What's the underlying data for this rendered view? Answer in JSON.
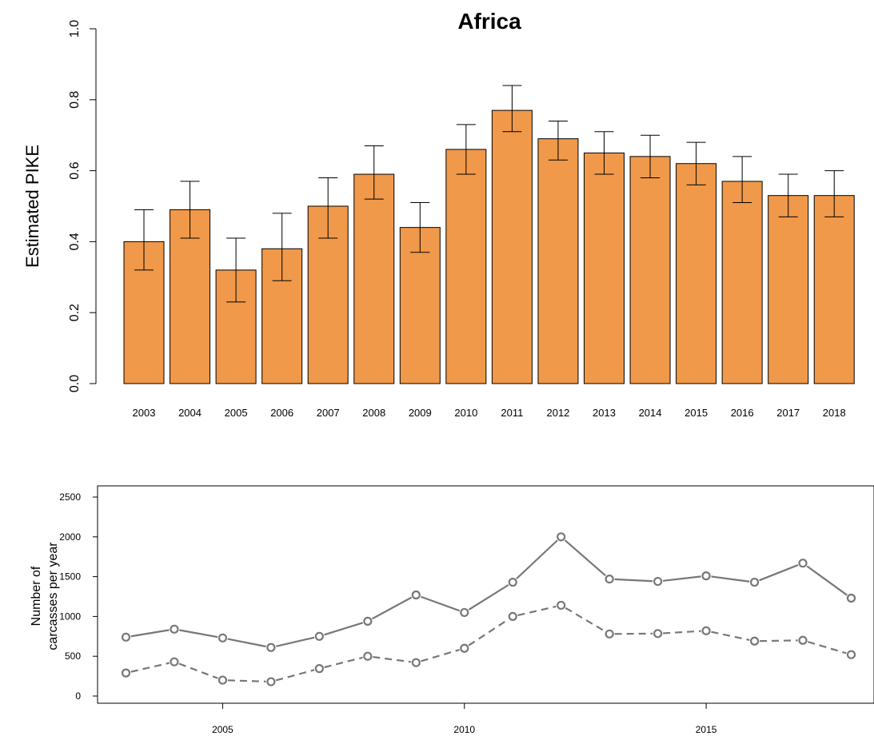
{
  "colors": {
    "bar_fill": "#F0994A",
    "bar_stroke": "#000000",
    "line": "#777777",
    "axis": "#000000"
  },
  "chart_data": [
    {
      "type": "bar",
      "title": "Africa",
      "ylabel": "Estimated PIKE",
      "xlabel": "",
      "ylim": [
        0,
        1
      ],
      "yticks": [
        "0.0",
        "0.2",
        "0.4",
        "0.6",
        "0.8",
        "1.0"
      ],
      "categories": [
        "2003",
        "2004",
        "2005",
        "2006",
        "2007",
        "2008",
        "2009",
        "2010",
        "2011",
        "2012",
        "2013",
        "2014",
        "2015",
        "2016",
        "2017",
        "2018"
      ],
      "values": [
        0.4,
        0.49,
        0.32,
        0.38,
        0.5,
        0.59,
        0.44,
        0.66,
        0.77,
        0.69,
        0.65,
        0.64,
        0.62,
        0.57,
        0.53,
        0.53
      ],
      "error_low": [
        0.32,
        0.41,
        0.23,
        0.29,
        0.41,
        0.52,
        0.37,
        0.59,
        0.71,
        0.63,
        0.59,
        0.58,
        0.56,
        0.51,
        0.47,
        0.47
      ],
      "error_high": [
        0.49,
        0.57,
        0.41,
        0.48,
        0.58,
        0.67,
        0.51,
        0.73,
        0.84,
        0.74,
        0.71,
        0.7,
        0.68,
        0.64,
        0.59,
        0.6
      ],
      "grid": false
    },
    {
      "type": "line",
      "title": "",
      "ylabel": [
        "Number of",
        "carcasses per year"
      ],
      "xlabel": "",
      "ylim": [
        0,
        2500
      ],
      "yticks": [
        "0",
        "500",
        "1000",
        "1500",
        "2000",
        "2500"
      ],
      "xticks": [
        "2005",
        "2010",
        "2015"
      ],
      "x": [
        2003,
        2004,
        2005,
        2006,
        2007,
        2008,
        2009,
        2010,
        2011,
        2012,
        2013,
        2014,
        2015,
        2016,
        2017,
        2018
      ],
      "series": [
        {
          "style": "solid",
          "values": [
            740,
            840,
            730,
            610,
            750,
            940,
            1270,
            1050,
            1430,
            2000,
            1470,
            1440,
            1510,
            1430,
            1670,
            1230
          ]
        },
        {
          "style": "dashed",
          "values": [
            290,
            430,
            200,
            180,
            345,
            500,
            420,
            600,
            1000,
            1140,
            780,
            785,
            820,
            690,
            700,
            520
          ]
        }
      ],
      "grid": false
    }
  ]
}
